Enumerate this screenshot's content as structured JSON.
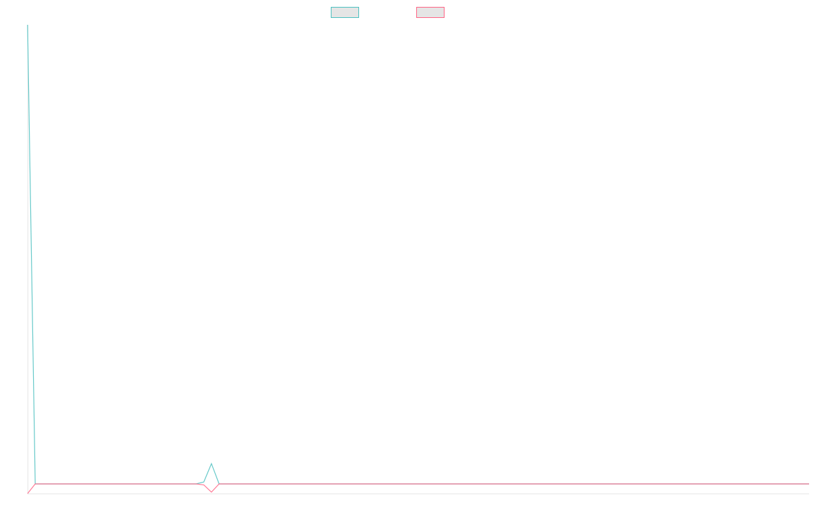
{
  "chart_data": {
    "type": "line",
    "title": "",
    "xlabel": "",
    "ylabel": "",
    "ylim": [
      -1,
      47.6
    ],
    "grid": false,
    "legend": "top",
    "point_count": 103,
    "series": [
      {
        "color": "#4bc0c0",
        "legend_fill": "#e5e5e5",
        "nonzero": {
          "0": 47.6,
          "23": 0.2,
          "24": 2.1
        }
      },
      {
        "color": "#ff6384",
        "legend_fill": "#e5e5e5",
        "nonzero": {
          "0": -1.0,
          "23": -0.1,
          "24": -0.85
        }
      }
    ]
  }
}
